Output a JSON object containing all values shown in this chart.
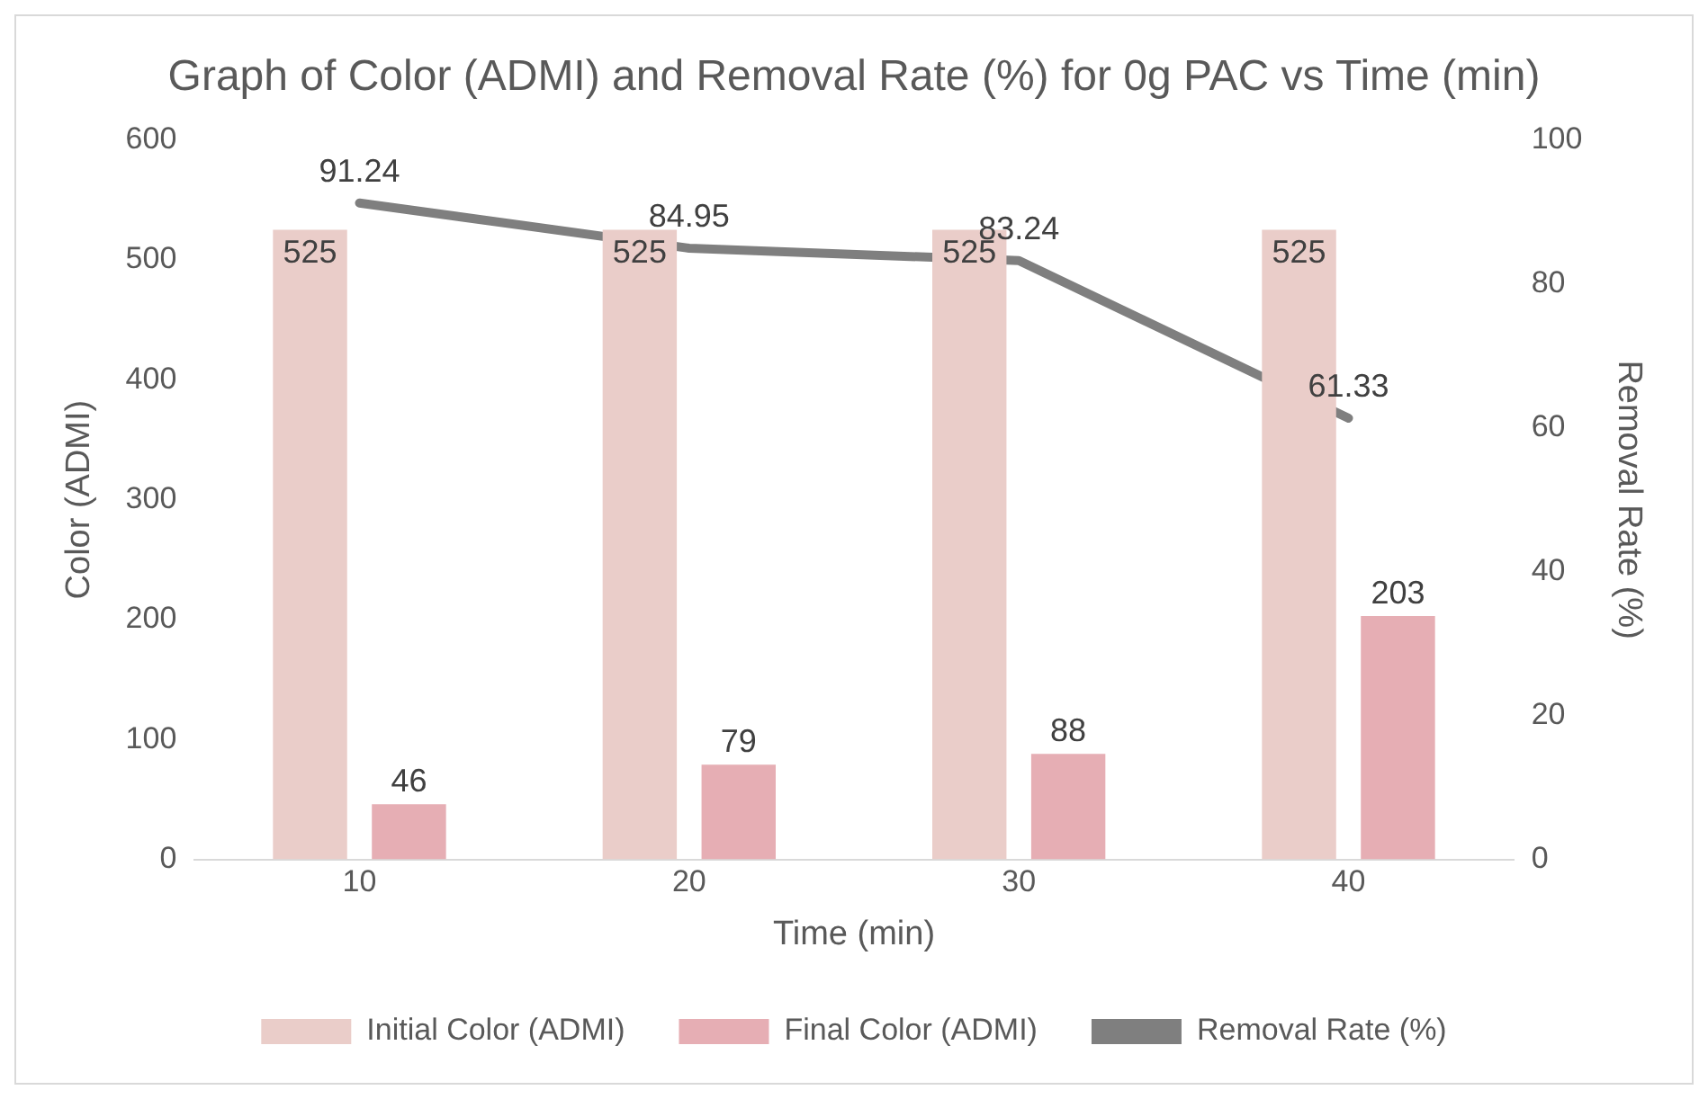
{
  "chart_data": {
    "type": "bar",
    "title": "Graph of Color (ADMI) and Removal Rate (%) for 0g PAC vs Time (min)",
    "xlabel": "Time (min)",
    "ylabel": "Color (ADMI)",
    "y2label": "Removal Rate (%)",
    "categories": [
      "10",
      "20",
      "30",
      "40"
    ],
    "series": [
      {
        "name": "Initial Color (ADMI)",
        "color": "#eacdc9",
        "values": [
          525,
          525,
          525,
          525
        ]
      },
      {
        "name": "Final Color (ADMI)",
        "color": "#e6aeb4",
        "values": [
          46,
          79,
          88,
          203
        ]
      },
      {
        "name": "Removal Rate (%)",
        "type": "line",
        "axis": "y2",
        "color": "#7f7f7f",
        "values": [
          91.24,
          84.95,
          83.24,
          61.33
        ]
      }
    ],
    "ylim": [
      0,
      600
    ],
    "yticks": [
      0,
      100,
      200,
      300,
      400,
      500,
      600
    ],
    "y2lim": [
      0,
      100
    ],
    "y2ticks": [
      0,
      20,
      40,
      60,
      80,
      100
    ],
    "data_labels": true,
    "grid": false,
    "legend": "bottom",
    "marker": "none"
  }
}
